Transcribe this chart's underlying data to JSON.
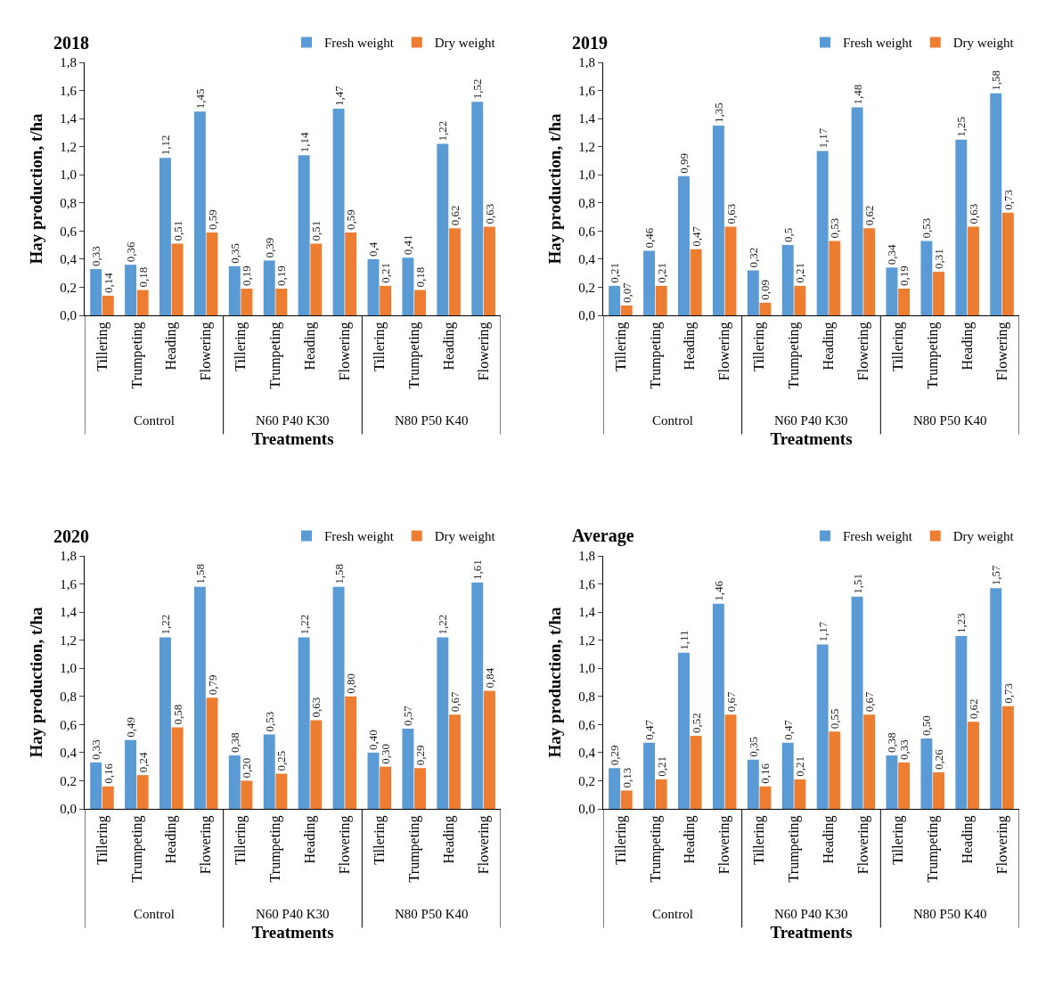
{
  "chart_data": [
    {
      "type": "bar",
      "title": "2018",
      "xlabel": "Treatments",
      "ylabel": "Hay production, t/ha",
      "categories": [
        "Tillering",
        "Trumpeting",
        "Heading",
        "Flowering",
        "Tillering",
        "Trumpeting",
        "Heading",
        "Flowering",
        "Tillering",
        "Trumpeting",
        "Heading",
        "Flowering"
      ],
      "annotations": [
        "Control",
        "N60 P40 K30",
        "N80 P50 K40"
      ],
      "ylim": [
        0,
        1.8
      ],
      "yticks": [
        {
          "value": 0,
          "label": "0,0"
        },
        {
          "value": 0.2,
          "label": "0,2"
        },
        {
          "value": 0.4,
          "label": "0,4"
        },
        {
          "value": 0.6,
          "label": "0,6"
        },
        {
          "value": 0.8,
          "label": "0,8"
        },
        {
          "value": 1,
          "label": "1,0"
        },
        {
          "value": 1.2,
          "label": "1,2"
        },
        {
          "value": 1.4,
          "label": "1,4"
        },
        {
          "value": 1.6,
          "label": "1,6"
        },
        {
          "value": 1.8,
          "label": "1,8"
        }
      ],
      "grid": false,
      "legend": "top right",
      "series": [
        {
          "name": "Fresh weight",
          "color": "#5b9bd5",
          "values": [
            0.33,
            0.36,
            1.12,
            1.45,
            0.35,
            0.39,
            1.14,
            1.47,
            0.4,
            0.41,
            1.22,
            1.52
          ],
          "value_labels": [
            "0,33",
            "0,36",
            "1,12",
            "1,45",
            "0,35",
            "0,39",
            "1,14",
            "1,47",
            "0,4",
            "0,41",
            "1,22",
            "1,52"
          ]
        },
        {
          "name": "Dry weight",
          "color": "#ed7d31",
          "values": [
            0.14,
            0.18,
            0.51,
            0.59,
            0.19,
            0.19,
            0.51,
            0.59,
            0.21,
            0.18,
            0.62,
            0.63
          ],
          "value_labels": [
            "0,14",
            "0,18",
            "0,51",
            "0,59",
            "0,19",
            "0,19",
            "0,51",
            "0,59",
            "0,21",
            "0,18",
            "0,62",
            "0,63"
          ]
        }
      ]
    },
    {
      "type": "bar",
      "title": "2019",
      "xlabel": "Treatments",
      "ylabel": "Hay production, t/ha",
      "categories": [
        "Tillering",
        "Trumpeting",
        "Heading",
        "Flowering",
        "Tillering",
        "Trumpeting",
        "Heading",
        "Flowering",
        "Tillering",
        "Trumpeting",
        "Heading",
        "Flowering"
      ],
      "annotations": [
        "Control",
        "N60 P40 K30",
        "N80 P50 K40"
      ],
      "ylim": [
        0,
        1.8
      ],
      "yticks": [
        {
          "value": 0,
          "label": "0,0"
        },
        {
          "value": 0.2,
          "label": "0,2"
        },
        {
          "value": 0.4,
          "label": "0,4"
        },
        {
          "value": 0.6,
          "label": "0,6"
        },
        {
          "value": 0.8,
          "label": "0,8"
        },
        {
          "value": 1,
          "label": "1,0"
        },
        {
          "value": 1.2,
          "label": "1,2"
        },
        {
          "value": 1.4,
          "label": "1,4"
        },
        {
          "value": 1.6,
          "label": "1,6"
        },
        {
          "value": 1.8,
          "label": "1,8"
        }
      ],
      "grid": false,
      "legend": "top right",
      "series": [
        {
          "name": "Fresh weight",
          "color": "#5b9bd5",
          "values": [
            0.21,
            0.46,
            0.99,
            1.35,
            0.32,
            0.5,
            1.17,
            1.48,
            0.34,
            0.53,
            1.25,
            1.58
          ],
          "value_labels": [
            "0,21",
            "0,46",
            "0,99",
            "1,35",
            "0,32",
            "0,5",
            "1,17",
            "1,48",
            "0,34",
            "0,53",
            "1,25",
            "1,58"
          ]
        },
        {
          "name": "Dry weight",
          "color": "#ed7d31",
          "values": [
            0.07,
            0.21,
            0.47,
            0.63,
            0.09,
            0.21,
            0.53,
            0.62,
            0.19,
            0.31,
            0.63,
            0.73
          ],
          "value_labels": [
            "0,07",
            "0,21",
            "0,47",
            "0,63",
            "0,09",
            "0,21",
            "0,53",
            "0,62",
            "0,19",
            "0,31",
            "0,63",
            "0,73"
          ]
        }
      ]
    },
    {
      "type": "bar",
      "title": "2020",
      "xlabel": "Treatments",
      "ylabel": "Hay production, t/ha",
      "categories": [
        "Tillering",
        "Trumpeting",
        "Heading",
        "Flowering",
        "Tillering",
        "Trumpeting",
        "Heading",
        "Flowering",
        "Tillering",
        "Trumpeting",
        "Heading",
        "Flowering"
      ],
      "annotations": [
        "Control",
        "N60 P40 K30",
        "N80 P50 K40"
      ],
      "ylim": [
        0,
        1.8
      ],
      "yticks": [
        {
          "value": 0,
          "label": "0,0"
        },
        {
          "value": 0.2,
          "label": "0,2"
        },
        {
          "value": 0.4,
          "label": "0,4"
        },
        {
          "value": 0.6,
          "label": "0,6"
        },
        {
          "value": 0.8,
          "label": "0,8"
        },
        {
          "value": 1,
          "label": "1,0"
        },
        {
          "value": 1.2,
          "label": "1,2"
        },
        {
          "value": 1.4,
          "label": "1,4"
        },
        {
          "value": 1.6,
          "label": "1,6"
        },
        {
          "value": 1.8,
          "label": "1,8"
        }
      ],
      "grid": false,
      "legend": "top right",
      "series": [
        {
          "name": "Fresh weight",
          "color": "#5b9bd5",
          "values": [
            0.33,
            0.49,
            1.22,
            1.58,
            0.38,
            0.53,
            1.22,
            1.58,
            0.4,
            0.57,
            1.22,
            1.61
          ],
          "value_labels": [
            "0,33",
            "0,49",
            "1,22",
            "1,58",
            "0,38",
            "0,53",
            "1,22",
            "1,58",
            "0,40",
            "0,57",
            "1,22",
            "1,61"
          ]
        },
        {
          "name": "Dry weight",
          "color": "#ed7d31",
          "values": [
            0.16,
            0.24,
            0.58,
            0.79,
            0.2,
            0.25,
            0.63,
            0.8,
            0.3,
            0.29,
            0.67,
            0.84
          ],
          "value_labels": [
            "0,16",
            "0,24",
            "0,58",
            "0,79",
            "0,20",
            "0,25",
            "0,63",
            "0,80",
            "0,30",
            "0,29",
            "0,67",
            "0,84"
          ]
        }
      ]
    },
    {
      "type": "bar",
      "title": "Average",
      "xlabel": "Treatments",
      "ylabel": "Hay production, t/ha",
      "categories": [
        "Tillering",
        "Trumpeting",
        "Heading",
        "Flowering",
        "Tillering",
        "Trumpeting",
        "Heading",
        "Flowering",
        "Tillering",
        "Trumpeting",
        "Heading",
        "Flowering"
      ],
      "annotations": [
        "Control",
        "N60 P40 K30",
        "N80 P50 K40"
      ],
      "ylim": [
        0,
        1.8
      ],
      "yticks": [
        {
          "value": 0,
          "label": "0,0"
        },
        {
          "value": 0.2,
          "label": "0,2"
        },
        {
          "value": 0.4,
          "label": "0,4"
        },
        {
          "value": 0.6,
          "label": "0,6"
        },
        {
          "value": 0.8,
          "label": "0,8"
        },
        {
          "value": 1,
          "label": "1,0"
        },
        {
          "value": 1.2,
          "label": "1,2"
        },
        {
          "value": 1.4,
          "label": "1,4"
        },
        {
          "value": 1.6,
          "label": "1,6"
        },
        {
          "value": 1.8,
          "label": "1,8"
        }
      ],
      "grid": false,
      "legend": "top right",
      "series": [
        {
          "name": "Fresh weight",
          "color": "#5b9bd5",
          "values": [
            0.29,
            0.47,
            1.11,
            1.46,
            0.35,
            0.47,
            1.17,
            1.51,
            0.38,
            0.5,
            1.23,
            1.57
          ],
          "value_labels": [
            "0,29",
            "0,47",
            "1,11",
            "1,46",
            "0,35",
            "0,47",
            "1,17",
            "1,51",
            "0,38",
            "0,50",
            "1,23",
            "1,57"
          ]
        },
        {
          "name": "Dry weight",
          "color": "#ed7d31",
          "values": [
            0.13,
            0.21,
            0.52,
            0.67,
            0.16,
            0.21,
            0.55,
            0.67,
            0.33,
            0.26,
            0.62,
            0.73
          ],
          "value_labels": [
            "0,13",
            "0,21",
            "0,52",
            "0,67",
            "0,16",
            "0,21",
            "0,55",
            "0,67",
            "0,33",
            "0,26",
            "0,62",
            "0,73"
          ]
        }
      ]
    }
  ]
}
